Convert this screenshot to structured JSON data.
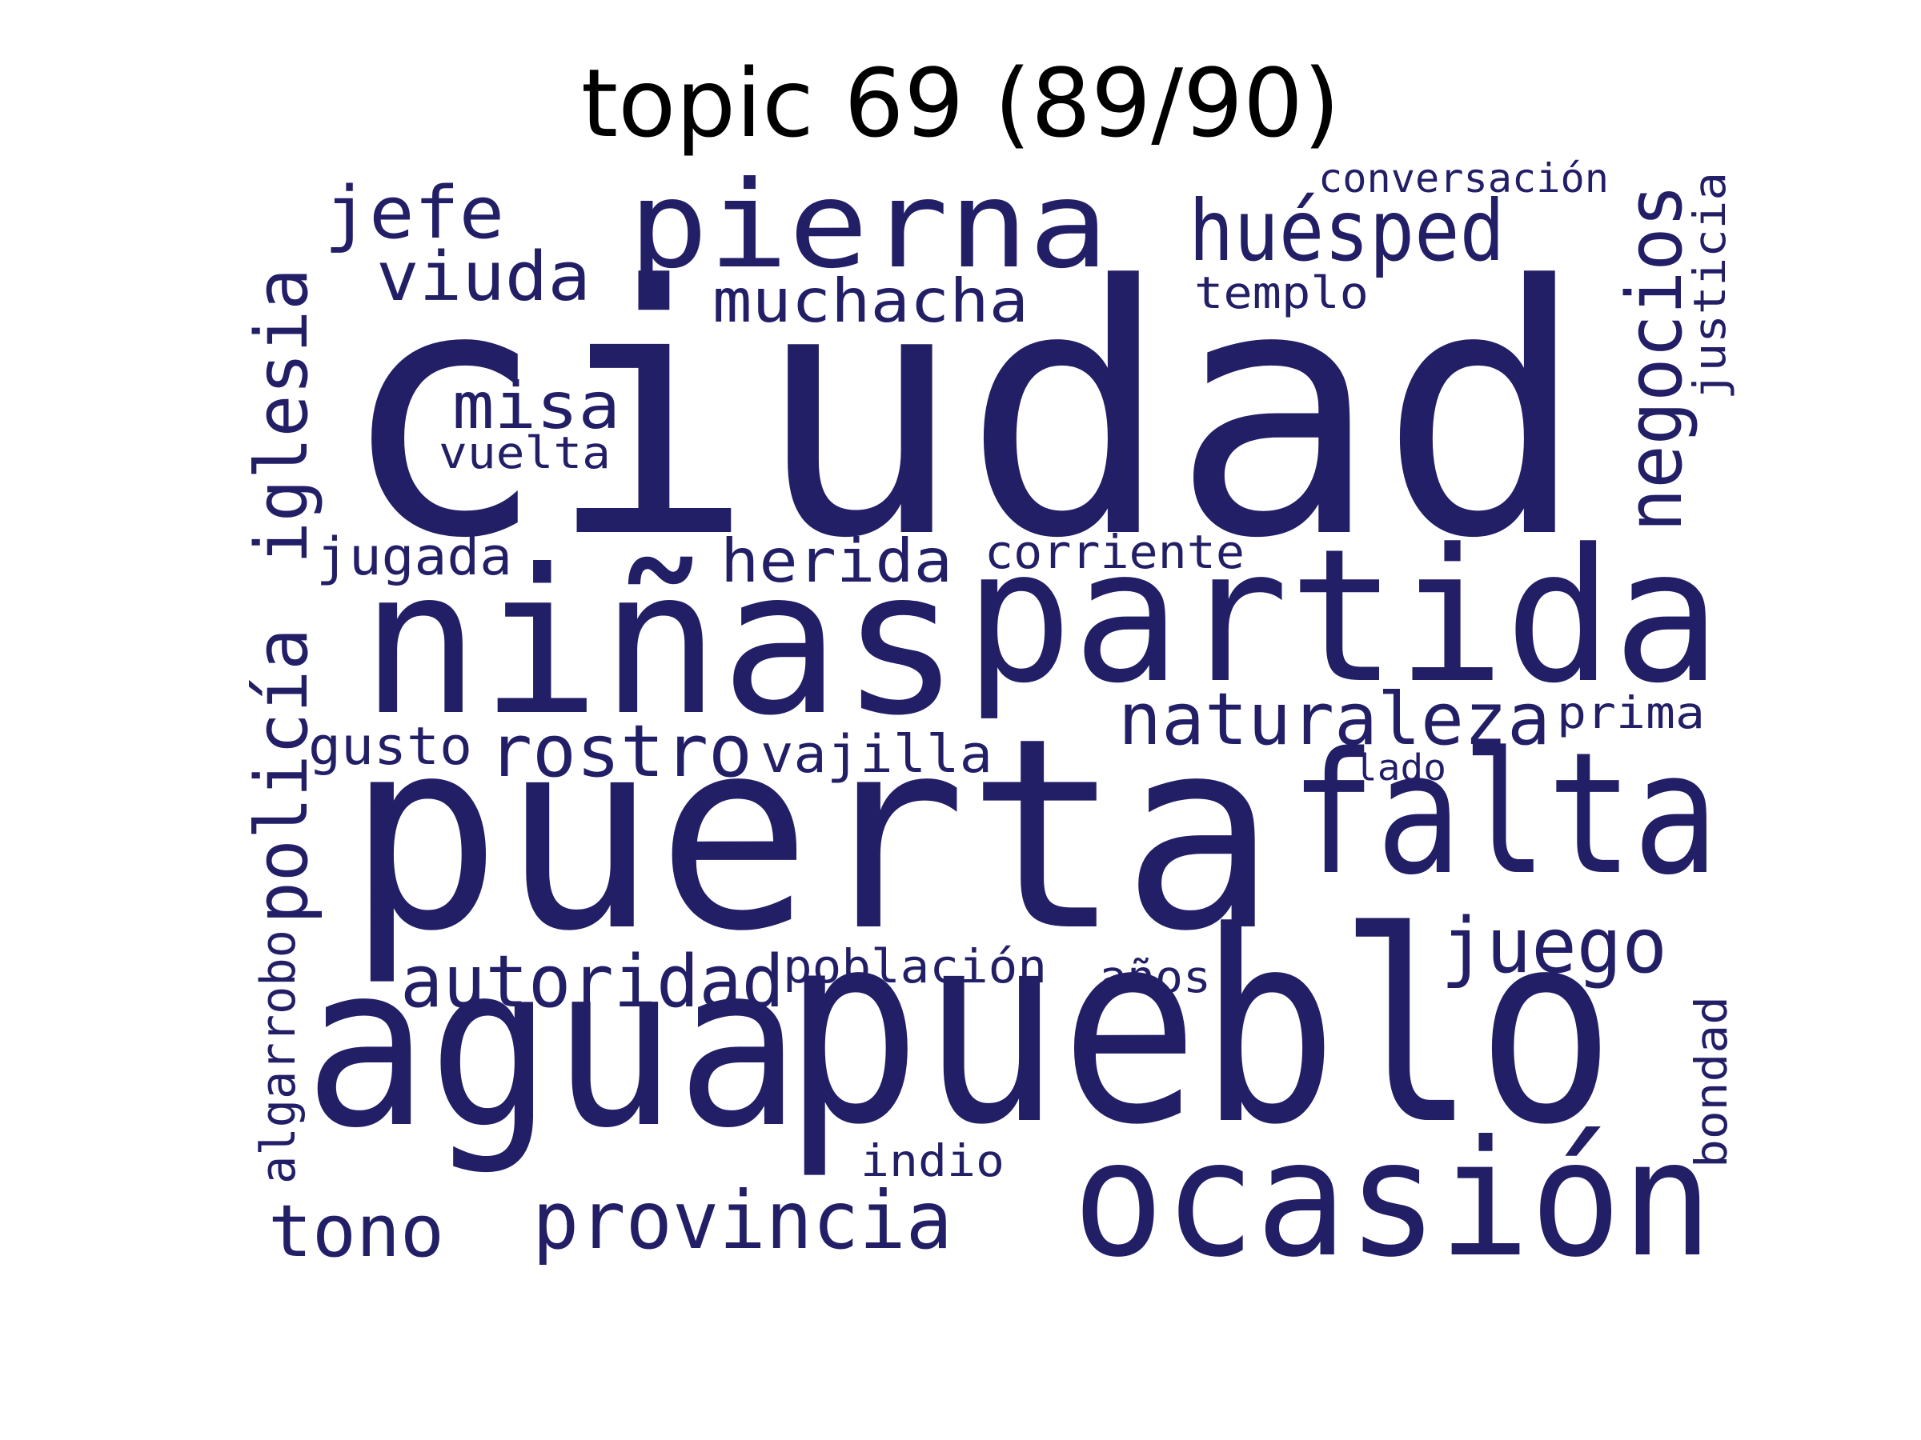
{
  "title": "topic 69 (89/90)",
  "word_color": "#231f67",
  "words": [
    {
      "text": "ciudad",
      "orientation": "horizontal"
    },
    {
      "text": "puerta",
      "orientation": "horizontal"
    },
    {
      "text": "pueblo",
      "orientation": "horizontal"
    },
    {
      "text": "agua",
      "orientation": "horizontal"
    },
    {
      "text": "niñas",
      "orientation": "horizontal"
    },
    {
      "text": "partida",
      "orientation": "horizontal"
    },
    {
      "text": "falta",
      "orientation": "horizontal"
    },
    {
      "text": "ocasión",
      "orientation": "horizontal"
    },
    {
      "text": "pierna",
      "orientation": "horizontal"
    },
    {
      "text": "huésped",
      "orientation": "horizontal"
    },
    {
      "text": "provincia",
      "orientation": "horizontal"
    },
    {
      "text": "negocios",
      "orientation": "vertical"
    },
    {
      "text": "iglesia",
      "orientation": "vertical"
    },
    {
      "text": "policía",
      "orientation": "vertical"
    },
    {
      "text": "naturaleza",
      "orientation": "horizontal"
    },
    {
      "text": "autoridad",
      "orientation": "horizontal"
    },
    {
      "text": "juego",
      "orientation": "horizontal"
    },
    {
      "text": "rostro",
      "orientation": "horizontal"
    },
    {
      "text": "tono",
      "orientation": "horizontal"
    },
    {
      "text": "jefe",
      "orientation": "horizontal"
    },
    {
      "text": "viuda",
      "orientation": "horizontal"
    },
    {
      "text": "muchacha",
      "orientation": "horizontal"
    },
    {
      "text": "herida",
      "orientation": "horizontal"
    },
    {
      "text": "misa",
      "orientation": "horizontal"
    },
    {
      "text": "jugada",
      "orientation": "horizontal"
    },
    {
      "text": "vajilla",
      "orientation": "horizontal"
    },
    {
      "text": "gusto",
      "orientation": "horizontal"
    },
    {
      "text": "población",
      "orientation": "horizontal"
    },
    {
      "text": "corriente",
      "orientation": "horizontal"
    },
    {
      "text": "justicia",
      "orientation": "vertical"
    },
    {
      "text": "algarrobo",
      "orientation": "vertical"
    },
    {
      "text": "bondad",
      "orientation": "vertical"
    },
    {
      "text": "templo",
      "orientation": "horizontal"
    },
    {
      "text": "prima",
      "orientation": "horizontal"
    },
    {
      "text": "años",
      "orientation": "horizontal"
    },
    {
      "text": "indio",
      "orientation": "horizontal"
    },
    {
      "text": "conversación",
      "orientation": "horizontal"
    },
    {
      "text": "vuelta",
      "orientation": "horizontal"
    },
    {
      "text": "lado",
      "orientation": "horizontal"
    }
  ]
}
